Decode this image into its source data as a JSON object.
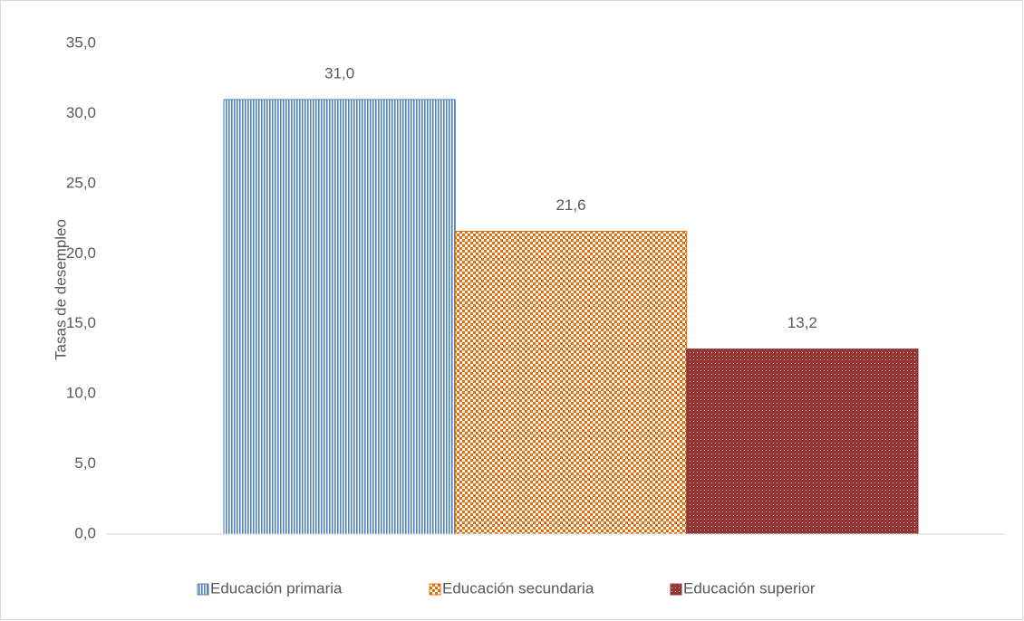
{
  "chart_data": {
    "type": "bar",
    "y_label": "Tasas de desempleo",
    "categories": [
      null
    ],
    "series": [
      {
        "name": "Educación primaria",
        "color": "#4f81bd",
        "pattern": "vertical-lines",
        "values": [
          31.0
        ],
        "value_labels": [
          "31,0"
        ]
      },
      {
        "name": "Educación secundaria",
        "color": "#e46c0a",
        "pattern": "checker",
        "values": [
          21.6
        ],
        "value_labels": [
          "21,6"
        ]
      },
      {
        "name": "Educación superior",
        "color": "#943634",
        "pattern": "dots",
        "values": [
          13.2
        ],
        "value_labels": [
          "13,2"
        ]
      }
    ],
    "ylim": [
      0,
      35
    ],
    "yticks": [
      {
        "value": 0,
        "label": "0,0"
      },
      {
        "value": 5,
        "label": "5,0"
      },
      {
        "value": 10,
        "label": "10,0"
      },
      {
        "value": 15,
        "label": "15,0"
      },
      {
        "value": 20,
        "label": "20,0"
      },
      {
        "value": 25,
        "label": "25,0"
      },
      {
        "value": 30,
        "label": "30,0"
      },
      {
        "value": 35,
        "label": "35,0"
      }
    ],
    "grid": false,
    "legend": "bottom"
  }
}
